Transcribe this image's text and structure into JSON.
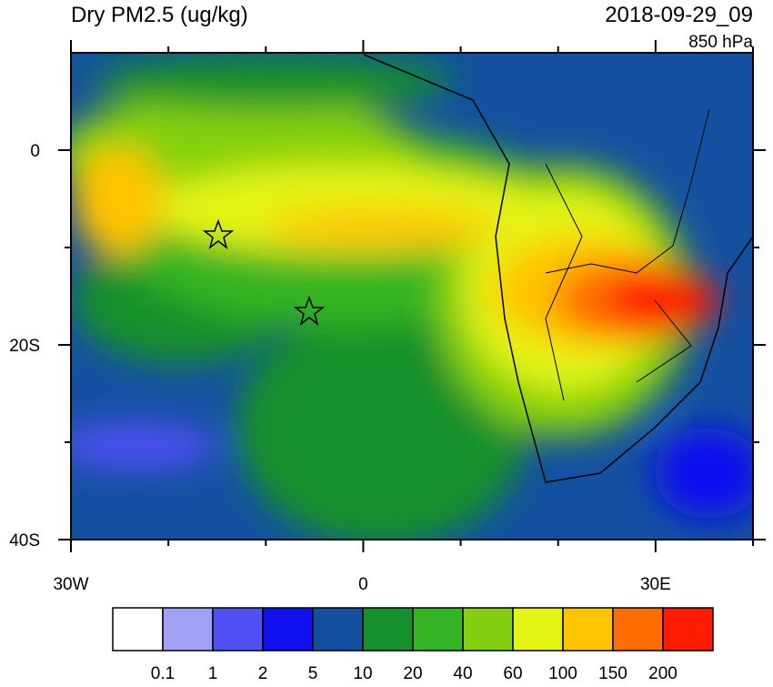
{
  "header": {
    "title": "Dry PM2.5 (ug/kg)",
    "time": "2018-09-29_09",
    "level": "850 hPa"
  },
  "map": {
    "lon_range": [
      -30,
      40
    ],
    "lat_range": [
      -40,
      10
    ],
    "lon_ticks": [
      {
        "value": -30,
        "label": "30W"
      },
      0,
      {
        "value": 30,
        "label": "30E"
      }
    ],
    "lat_ticks": [
      0,
      {
        "value": -20,
        "label": "20S"
      },
      {
        "value": -40,
        "label": "40S"
      }
    ],
    "lon_minor_ticks": [
      -20,
      -10,
      10,
      20,
      40
    ],
    "lat_minor_ticks": [
      -30,
      -10
    ]
  },
  "colorbar": {
    "levels": [
      {
        "value": 0.1,
        "label": "0.1"
      },
      1,
      2,
      5,
      10,
      20,
      40,
      60,
      100,
      150,
      200
    ],
    "colors": [
      "#ffffff",
      "#a0a0f5",
      "#5050f5",
      "#1010f0",
      "#1450a0",
      "#14902c",
      "#34b424",
      "#84d010",
      "#e4f414",
      "#ffc400",
      "#ff6c00",
      "#ff1c00"
    ]
  }
}
